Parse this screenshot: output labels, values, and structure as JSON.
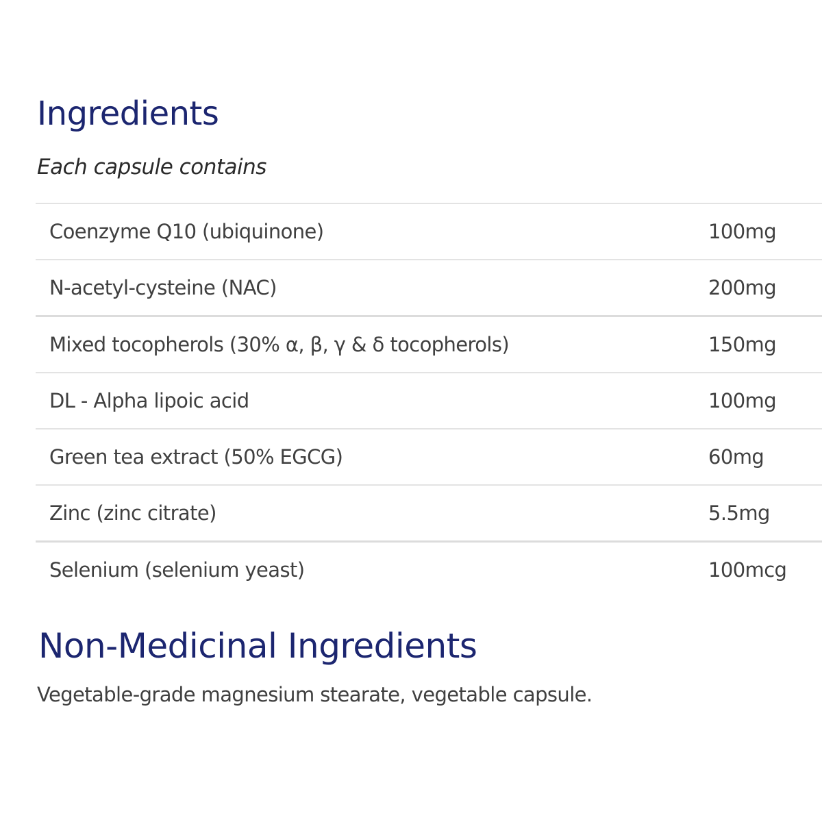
{
  "ingredients": {
    "title": "Ingredients",
    "subtitle": "Each capsule contains",
    "rows": [
      {
        "name": "Coenzyme Q10 (ubiquinone)",
        "amount": "100mg"
      },
      {
        "name": "N-acetyl-cysteine (NAC)",
        "amount": "200mg"
      },
      {
        "name": "Mixed tocopherols (30% α, β, γ & δ tocopherols)",
        "amount": "150mg"
      },
      {
        "name": "DL - Alpha lipoic acid",
        "amount": "100mg"
      },
      {
        "name": "Green tea extract (50% EGCG)",
        "amount": "60mg"
      },
      {
        "name": "Zinc (zinc citrate)",
        "amount": "5.5mg"
      },
      {
        "name": "Selenium (selenium yeast)",
        "amount": "100mcg"
      }
    ]
  },
  "non_medicinal": {
    "title": "Non-Medicinal Ingredients",
    "text": "Vegetable-grade magnesium stearate, vegetable capsule."
  },
  "colors": {
    "heading": "#1c2670",
    "text": "#404040",
    "divider": "#e3e3e3"
  }
}
